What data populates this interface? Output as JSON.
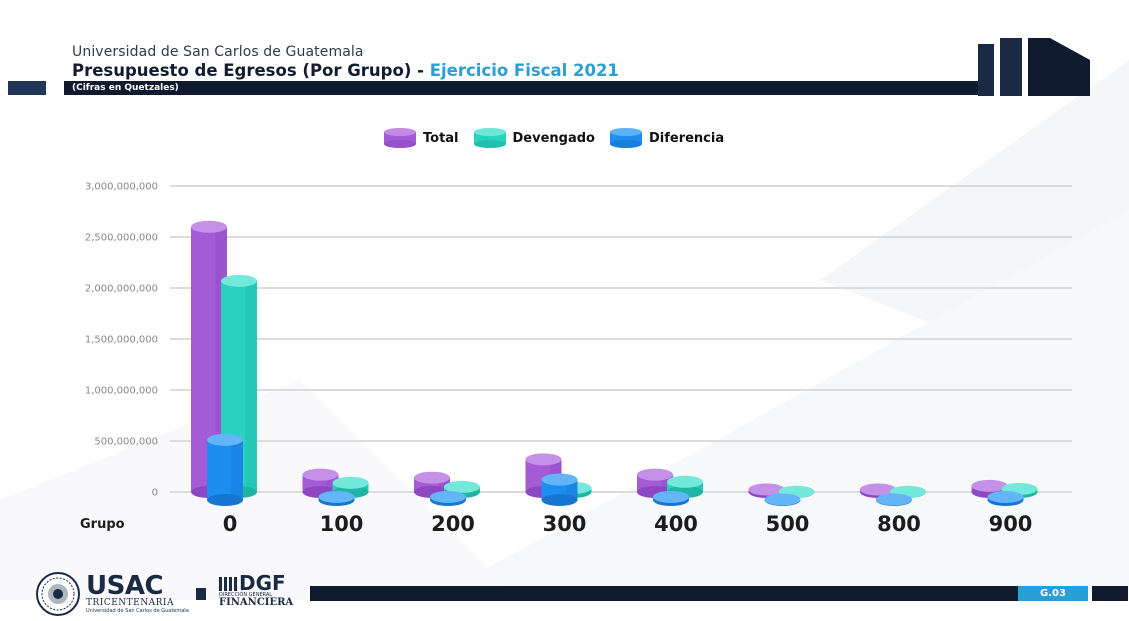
{
  "header": {
    "institution": "Universidad de San Carlos de Guatemala",
    "title_main": "Presupuesto de Egresos (Por Grupo) - ",
    "title_accent": "Ejercicio Fiscal 2021",
    "units_note": "(Cifras en Quetzales)"
  },
  "footer": {
    "usac_name": "USAC",
    "usac_sub": "TRICENTENARIA",
    "usac_sub2": "Universidad de San Carlos de Guatemala",
    "dgf_name": "DGF",
    "dgf_small": "DIRECCIÓN GENERAL",
    "dgf_big": "FINANCIERA",
    "page_tag": "G.03"
  },
  "colors": {
    "total": "#a45bd6",
    "devengado": "#29d2bf",
    "diferencia": "#1c8ef2",
    "navy": "#0f1a2e",
    "accent": "#2a9fd6"
  },
  "chart_data": {
    "type": "bar",
    "xlabel": "Grupo",
    "ylabel": "",
    "categories": [
      "0",
      "100",
      "200",
      "300",
      "400",
      "500",
      "800",
      "900"
    ],
    "ylim": [
      0,
      3000000000
    ],
    "yticks": [
      0,
      500000000,
      1000000000,
      1500000000,
      2000000000,
      2500000000,
      3000000000
    ],
    "ytick_labels": [
      "0",
      "500,000,000",
      "1,000,000,000",
      "1,500,000,000",
      "2,000,000,000",
      "2,500,000,000",
      "3,000,000,000"
    ],
    "grid": true,
    "legend_position": "top-center",
    "series": [
      {
        "name": "Total",
        "values": [
          2600000000,
          170000000,
          140000000,
          320000000,
          170000000,
          25000000,
          25000000,
          60000000
        ]
      },
      {
        "name": "Devengado",
        "values": [
          2070000000,
          90000000,
          50000000,
          40000000,
          100000000,
          2000000,
          2000000,
          30000000
        ]
      },
      {
        "name": "Diferencia",
        "values": [
          590000000,
          30000000,
          30000000,
          200000000,
          30000000,
          5000000,
          5000000,
          30000000
        ]
      }
    ]
  }
}
